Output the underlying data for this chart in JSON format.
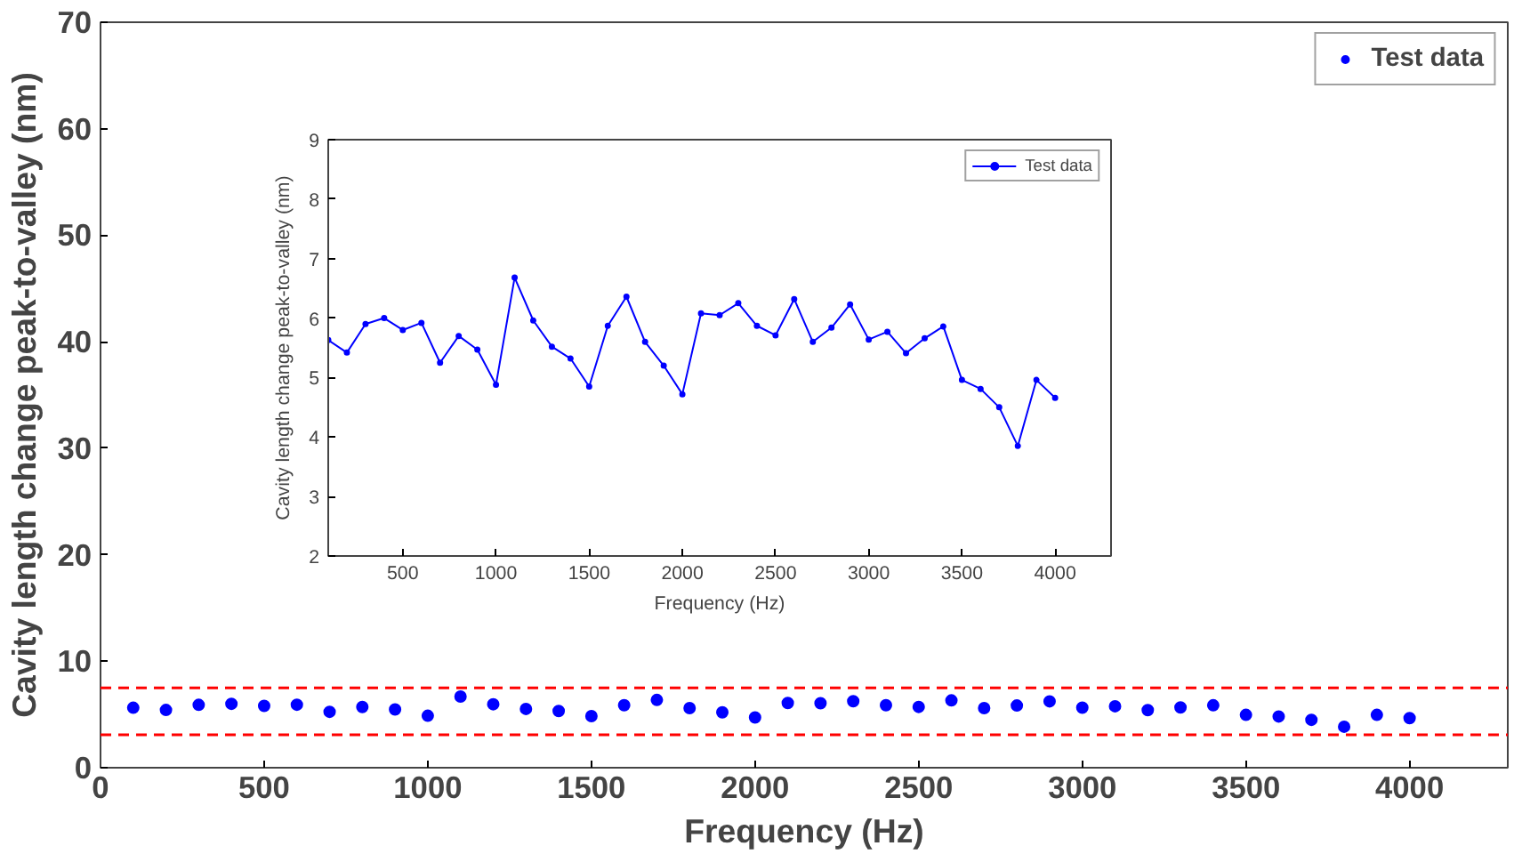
{
  "chart_data": [
    {
      "type": "scatter",
      "xlabel": "Frequency (Hz)",
      "ylabel": "Cavity length change peak-to-valley (nm)",
      "x": [
        100,
        200,
        300,
        400,
        500,
        600,
        700,
        800,
        900,
        1000,
        1100,
        1200,
        1300,
        1400,
        1500,
        1600,
        1700,
        1800,
        1900,
        2000,
        2100,
        2200,
        2300,
        2400,
        2500,
        2600,
        2700,
        2800,
        2900,
        3000,
        3100,
        3200,
        3300,
        3400,
        3500,
        3600,
        3700,
        3800,
        3900,
        4000
      ],
      "series": [
        {
          "name": "Test data",
          "color": "#0000ff",
          "values": [
            5.63,
            5.42,
            5.9,
            6.0,
            5.8,
            5.92,
            5.25,
            5.7,
            5.47,
            4.88,
            6.68,
            5.96,
            5.52,
            5.32,
            4.85,
            5.87,
            6.36,
            5.6,
            5.2,
            4.72,
            6.08,
            6.05,
            6.25,
            5.87,
            5.71,
            6.32,
            5.6,
            5.84,
            6.23,
            5.64,
            5.77,
            5.41,
            5.66,
            5.86,
            4.96,
            4.81,
            4.5,
            3.85,
            4.96,
            4.66
          ]
        }
      ],
      "xlim": [
        0,
        4300
      ],
      "xticks": [
        0,
        500,
        1000,
        1500,
        2000,
        2500,
        3000,
        3500,
        4000
      ],
      "ylim": [
        0,
        70
      ],
      "yticks": [
        0,
        10,
        20,
        30,
        40,
        50,
        60,
        70
      ],
      "ref_lines": [
        {
          "axis": "y",
          "value": 7.5,
          "color": "#ff0000",
          "line_style": "dashed"
        },
        {
          "axis": "y",
          "value": 3.1,
          "color": "#ff0000",
          "line_style": "dashed"
        }
      ],
      "legend": "top right",
      "marker": "circle",
      "grid": false
    },
    {
      "type": "line",
      "xlabel": "Frequency (Hz)",
      "ylabel": "Cavity length change peak-to-valley (nm)",
      "x": [
        100,
        200,
        300,
        400,
        500,
        600,
        700,
        800,
        900,
        1000,
        1100,
        1200,
        1300,
        1400,
        1500,
        1600,
        1700,
        1800,
        1900,
        2000,
        2100,
        2200,
        2300,
        2400,
        2500,
        2600,
        2700,
        2800,
        2900,
        3000,
        3100,
        3200,
        3300,
        3400,
        3500,
        3600,
        3700,
        3800,
        3900,
        4000
      ],
      "series": [
        {
          "name": "Test data",
          "color": "#0000ff",
          "values": [
            5.63,
            5.42,
            5.9,
            6.0,
            5.8,
            5.92,
            5.25,
            5.7,
            5.47,
            4.88,
            6.68,
            5.96,
            5.52,
            5.32,
            4.85,
            5.87,
            6.36,
            5.6,
            5.2,
            4.72,
            6.08,
            6.05,
            6.25,
            5.87,
            5.71,
            6.32,
            5.6,
            5.84,
            6.23,
            5.64,
            5.77,
            5.41,
            5.66,
            5.86,
            4.96,
            4.81,
            4.5,
            3.85,
            4.96,
            4.66
          ]
        }
      ],
      "xlim": [
        100,
        4300
      ],
      "xticks": [
        500,
        1000,
        1500,
        2000,
        2500,
        3000,
        3500,
        4000
      ],
      "ylim": [
        2,
        9
      ],
      "yticks": [
        2,
        3,
        4,
        5,
        6,
        7,
        8,
        9
      ],
      "legend": "top right",
      "marker": "circle",
      "line_style": "solid",
      "grid": false
    }
  ]
}
